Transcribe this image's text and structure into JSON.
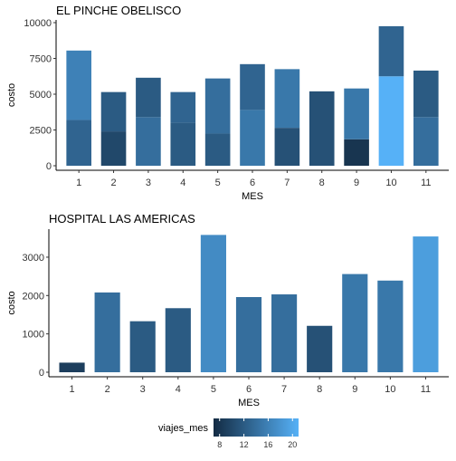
{
  "chart_data": [
    {
      "type": "bar",
      "stacked": true,
      "title": "EL PINCHE OBELISCO",
      "xlabel": "MES",
      "ylabel": "costo",
      "categories": [
        "1",
        "2",
        "3",
        "4",
        "5",
        "6",
        "7",
        "8",
        "9",
        "10",
        "11"
      ],
      "ylim": [
        0,
        10000
      ],
      "yticks": [
        0,
        2500,
        5000,
        7500,
        10000
      ],
      "segments": [
        [
          {
            "value": 3200,
            "viajes_mes": 13
          },
          {
            "value": 4850,
            "viajes_mes": 16
          }
        ],
        [
          {
            "value": 2400,
            "viajes_mes": 10
          },
          {
            "value": 2750,
            "viajes_mes": 12
          }
        ],
        [
          {
            "value": 3400,
            "viajes_mes": 14
          },
          {
            "value": 2750,
            "viajes_mes": 12
          }
        ],
        [
          {
            "value": 3000,
            "viajes_mes": 12
          },
          {
            "value": 2150,
            "viajes_mes": 13
          }
        ],
        [
          {
            "value": 2250,
            "viajes_mes": 12
          },
          {
            "value": 3850,
            "viajes_mes": 14
          }
        ],
        [
          {
            "value": 3900,
            "viajes_mes": 15
          },
          {
            "value": 3200,
            "viajes_mes": 13
          }
        ],
        [
          {
            "value": 2650,
            "viajes_mes": 11
          },
          {
            "value": 4100,
            "viajes_mes": 15
          }
        ],
        [
          {
            "value": 5200,
            "viajes_mes": 11
          }
        ],
        [
          {
            "value": 1850,
            "viajes_mes": 8
          },
          {
            "value": 3550,
            "viajes_mes": 15
          }
        ],
        [
          {
            "value": 6250,
            "viajes_mes": 21
          },
          {
            "value": 3500,
            "viajes_mes": 13
          }
        ],
        [
          {
            "value": 3400,
            "viajes_mes": 14
          },
          {
            "value": 3250,
            "viajes_mes": 12
          }
        ]
      ]
    },
    {
      "type": "bar",
      "title": "HOSPITAL LAS AMERICAS",
      "xlabel": "MES",
      "ylabel": "costo",
      "categories": [
        "1",
        "2",
        "3",
        "4",
        "5",
        "6",
        "7",
        "8",
        "9",
        "10",
        "11"
      ],
      "values": [
        250,
        2080,
        1330,
        1670,
        3580,
        1960,
        2030,
        1210,
        2560,
        2390,
        3540
      ],
      "viajes_mes": [
        9,
        14,
        12,
        12,
        17,
        14,
        14,
        11,
        15,
        15,
        19
      ],
      "ylim": [
        0,
        3500
      ],
      "yticks": [
        0,
        1000,
        2000,
        3000
      ]
    }
  ],
  "legend": {
    "title": "viajes_mes",
    "breaks": [
      8,
      12,
      16,
      20
    ],
    "range": [
      7,
      21
    ],
    "color_low": "#132B43",
    "color_high": "#56B1F7"
  }
}
